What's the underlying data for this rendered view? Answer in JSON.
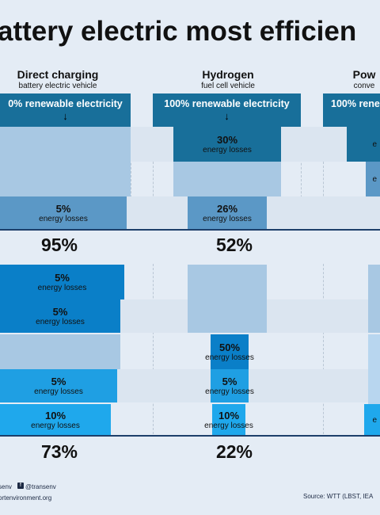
{
  "title": "attery electric most efficien",
  "columns": [
    {
      "heading": "Direct charging",
      "subheading": "battery electric vehicle"
    },
    {
      "heading": "Hydrogen",
      "subheading": "fuel cell vehicle"
    },
    {
      "heading": "Pow",
      "subheading": "conve"
    }
  ],
  "source_bars": [
    {
      "label": "0% renewable electricity"
    },
    {
      "label": "100% renewable electricity"
    },
    {
      "label": "100% rene"
    }
  ],
  "loss_label": "energy losses",
  "stage1": {
    "direct": [
      "",
      "",
      "5%"
    ],
    "hydrogen": [
      "30%",
      "",
      "26%"
    ],
    "power": [
      "e",
      "e",
      ""
    ]
  },
  "stage1_results": {
    "direct": "95%",
    "hydrogen": "52%"
  },
  "stage2": {
    "direct": [
      "5%",
      "5%",
      "",
      "5%",
      "10%"
    ],
    "hydrogen": [
      "",
      "",
      "50%",
      "5%",
      "10%"
    ],
    "power": [
      "",
      "",
      "",
      "",
      "e"
    ]
  },
  "stage2_results": {
    "direct": "73%",
    "hydrogen": "22%"
  },
  "footer": {
    "handle_left": "senv",
    "social": "@transenv",
    "website": "ortenvironment.org",
    "source": "Source: WTT (LBST, IEA"
  },
  "colors": {
    "background": "#e4ecf5",
    "dark_blue": "#186f9a",
    "light_blue": "#a8c8e3",
    "mid_blue": "#5b98c6",
    "bright_blue": "#0a7fc8",
    "cyan_blue": "#1f9fe3",
    "line": "#1d3f6a"
  }
}
